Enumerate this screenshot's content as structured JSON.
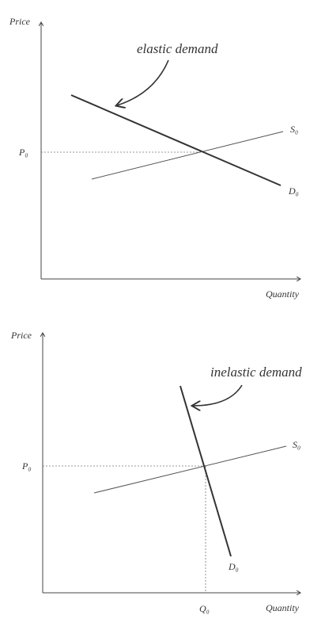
{
  "graphs": [
    {
      "y_label": "Price",
      "x_label": "Quantity",
      "annotation": "elastic demand",
      "supply_label": "S₀",
      "demand_label": "D₀",
      "price_label": "P₀"
    },
    {
      "y_label": "Price",
      "x_label": "Quantity",
      "annotation": "inelastic demand",
      "supply_label": "S₀",
      "demand_label": "D₀",
      "price_label": "P₀",
      "quantity_label": "Q₀"
    }
  ]
}
